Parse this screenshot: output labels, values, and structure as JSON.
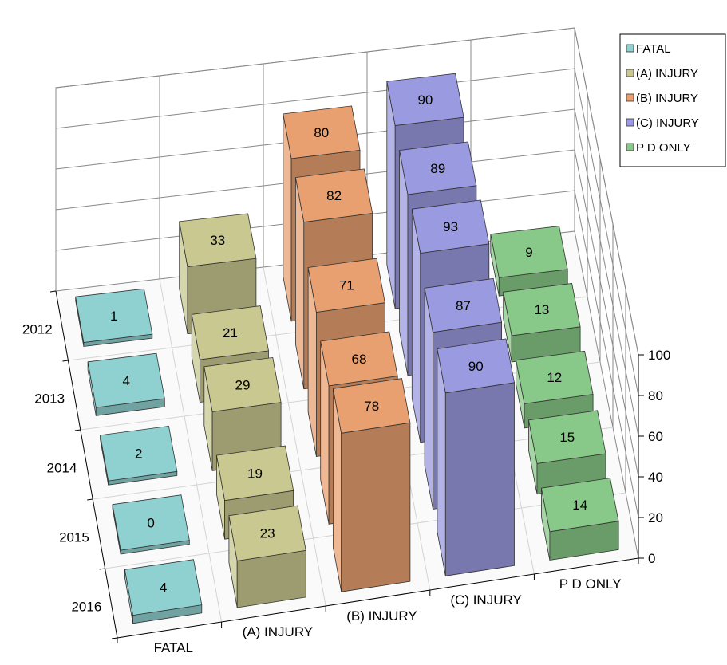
{
  "chart_data": {
    "type": "bar",
    "subtype": "3d-column",
    "categories": [
      "2012",
      "2013",
      "2014",
      "2015",
      "2016"
    ],
    "series": [
      {
        "name": "FATAL",
        "color": "#8fd0d0",
        "values": [
          1,
          4,
          2,
          0,
          4
        ]
      },
      {
        "name": "(A) INJURY",
        "color": "#c8c890",
        "values": [
          33,
          21,
          29,
          19,
          23
        ]
      },
      {
        "name": "(B) INJURY",
        "color": "#e8a070",
        "values": [
          80,
          82,
          71,
          68,
          78
        ]
      },
      {
        "name": "(C) INJURY",
        "color": "#9a9ae0",
        "values": [
          90,
          89,
          93,
          87,
          90
        ]
      },
      {
        "name": "P D ONLY",
        "color": "#88c888",
        "values": [
          9,
          13,
          12,
          15,
          14
        ]
      }
    ],
    "z_ticks": [
      "0",
      "20",
      "40",
      "60",
      "80",
      "100"
    ],
    "zlim": [
      0,
      100
    ],
    "title": "",
    "xlabel": "",
    "ylabel": "",
    "legend_position": "top-right",
    "grid": true
  }
}
